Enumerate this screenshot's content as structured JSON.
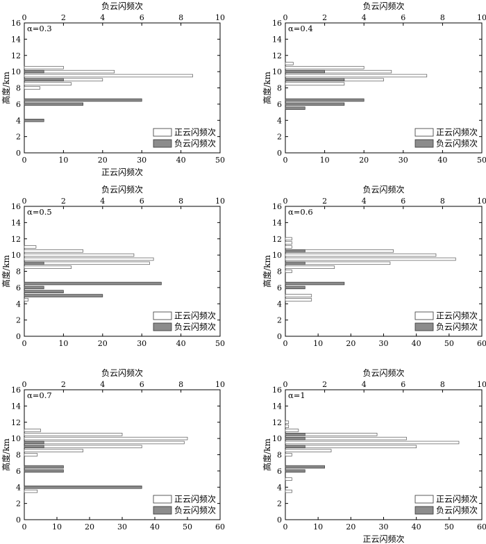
{
  "legend": {
    "positive": "正云闪频次",
    "negative": "负云闪频次",
    "positive_color": "#ffffff",
    "negative_color": "#8c8c8c"
  },
  "chart_data": [
    {
      "type": "bar",
      "orientation": "horizontal",
      "panel_label": "α=0.3",
      "ylabel": "高度/km",
      "xlabel_bottom": "正云闪频次",
      "xlabel_top": "负云闪频次",
      "ylim": [
        0,
        16
      ],
      "yticks": [
        0,
        2,
        4,
        6,
        8,
        10,
        12,
        14,
        16
      ],
      "xlim_bottom": [
        0,
        50
      ],
      "xticks_bottom": [
        0,
        10,
        20,
        30,
        40,
        50
      ],
      "xlim_top": [
        0,
        10
      ],
      "xticks_top": [
        0,
        2,
        4,
        6,
        8,
        10
      ],
      "series": [
        {
          "name": "正云闪频次",
          "axis": "bottom",
          "heights": [
            10.5,
            10.0,
            9.5,
            9.0,
            8.5,
            8.0
          ],
          "values": [
            10,
            23,
            43,
            20,
            12,
            4
          ]
        },
        {
          "name": "负云闪频次",
          "axis": "top",
          "heights": [
            10.0,
            9.0,
            6.5,
            6.0,
            4.0
          ],
          "values": [
            1,
            2,
            6,
            3,
            1
          ]
        }
      ]
    },
    {
      "type": "bar",
      "orientation": "horizontal",
      "panel_label": "α=0.4",
      "ylabel": "高度/km",
      "xlabel_bottom": "",
      "xlabel_top": "负云闪频次",
      "ylim": [
        0,
        16
      ],
      "yticks": [
        0,
        2,
        4,
        6,
        8,
        10,
        12,
        14,
        16
      ],
      "xlim_bottom": [
        0,
        50
      ],
      "xticks_bottom": [
        0,
        10,
        20,
        30,
        40,
        50
      ],
      "xlim_top": [
        0,
        10
      ],
      "xticks_top": [
        0,
        2,
        4,
        6,
        8,
        10
      ],
      "series": [
        {
          "name": "正云闪频次",
          "axis": "bottom",
          "heights": [
            11.0,
            10.5,
            10.0,
            9.5,
            9.0,
            8.5
          ],
          "values": [
            2,
            20,
            27,
            36,
            25,
            15
          ]
        },
        {
          "name": "负云闪频次",
          "axis": "top",
          "heights": [
            10.0,
            9.0,
            6.5,
            6.0,
            5.5
          ],
          "values": [
            2,
            3,
            4,
            3,
            1
          ]
        }
      ]
    },
    {
      "type": "bar",
      "orientation": "horizontal",
      "panel_label": "α=0.5",
      "ylabel": "高度/km",
      "xlabel_bottom": "",
      "xlabel_top": "负云闪频次",
      "ylim": [
        0,
        16
      ],
      "yticks": [
        0,
        2,
        4,
        6,
        8,
        10,
        12,
        14,
        16
      ],
      "xlim_bottom": [
        0,
        50
      ],
      "xticks_bottom": [
        0,
        10,
        20,
        30,
        40,
        50
      ],
      "xlim_top": [
        0,
        10
      ],
      "xticks_top": [
        0,
        2,
        4,
        6,
        8,
        10
      ],
      "series": [
        {
          "name": "正云闪频次",
          "axis": "bottom",
          "heights": [
            11.0,
            10.5,
            10.0,
            9.5,
            9.0,
            8.5,
            4.5
          ],
          "values": [
            3,
            15,
            28,
            33,
            32,
            12,
            1
          ]
        },
        {
          "name": "负云闪频次",
          "axis": "top",
          "heights": [
            9.0,
            6.5,
            6.0,
            5.5,
            5.0
          ],
          "values": [
            1,
            7,
            1,
            2,
            4
          ]
        }
      ]
    },
    {
      "type": "bar",
      "orientation": "horizontal",
      "panel_label": "α=0.6",
      "ylabel": "高度/km",
      "xlabel_bottom": "",
      "xlabel_top": "负云闪频次",
      "ylim": [
        0,
        16
      ],
      "yticks": [
        0,
        2,
        4,
        6,
        8,
        10,
        12,
        14,
        16
      ],
      "xlim_bottom": [
        0,
        60
      ],
      "xticks_bottom": [
        0,
        10,
        20,
        30,
        40,
        50,
        60
      ],
      "xlim_top": [
        0,
        10
      ],
      "xticks_top": [
        0,
        2,
        4,
        6,
        8,
        10
      ],
      "series": [
        {
          "name": "正云闪频次",
          "axis": "bottom",
          "heights": [
            12.0,
            11.5,
            11.0,
            10.5,
            10.0,
            9.5,
            9.0,
            8.5,
            8.0,
            5.0,
            4.5
          ],
          "values": [
            2,
            2,
            2,
            33,
            46,
            52,
            32,
            15,
            2,
            8,
            8
          ]
        },
        {
          "name": "负云闪频次",
          "axis": "top",
          "heights": [
            10.5,
            9.0,
            6.5,
            6.0
          ],
          "values": [
            1,
            1,
            3,
            1
          ]
        }
      ]
    },
    {
      "type": "bar",
      "orientation": "horizontal",
      "panel_label": "α=0.7",
      "ylabel": "高度/km",
      "xlabel_bottom": "",
      "xlabel_top": "负云闪频次",
      "ylim": [
        0,
        16
      ],
      "yticks": [
        0,
        2,
        4,
        6,
        8,
        10,
        12,
        14,
        16
      ],
      "xlim_bottom": [
        0,
        60
      ],
      "xticks_bottom": [
        0,
        10,
        20,
        30,
        40,
        50,
        60
      ],
      "xlim_top": [
        0,
        10
      ],
      "xticks_top": [
        0,
        2,
        4,
        6,
        8,
        10
      ],
      "series": [
        {
          "name": "正云闪频次",
          "axis": "bottom",
          "heights": [
            11.0,
            10.5,
            10.0,
            9.5,
            9.0,
            8.5,
            8.0,
            3.5
          ],
          "values": [
            5,
            30,
            50,
            49,
            36,
            18,
            4,
            4
          ]
        },
        {
          "name": "负云闪频次",
          "axis": "top",
          "heights": [
            9.5,
            9.0,
            6.5,
            6.0,
            4.0
          ],
          "values": [
            1,
            1,
            2,
            2,
            6
          ]
        }
      ]
    },
    {
      "type": "bar",
      "orientation": "horizontal",
      "panel_label": "α=1",
      "ylabel": "高度/km",
      "xlabel_bottom": "正云闪频次",
      "xlabel_top": "负云闪频次",
      "ylim": [
        0,
        16
      ],
      "yticks": [
        0,
        2,
        4,
        6,
        8,
        10,
        12,
        14,
        16
      ],
      "xlim_bottom": [
        0,
        60
      ],
      "xticks_bottom": [
        0,
        10,
        20,
        30,
        40,
        50,
        60
      ],
      "xlim_top": [
        0,
        10
      ],
      "xticks_top": [
        0,
        2,
        4,
        6,
        8,
        10
      ],
      "series": [
        {
          "name": "正云闪频次",
          "axis": "bottom",
          "heights": [
            12.0,
            11.5,
            11.0,
            10.5,
            10.0,
            9.5,
            9.0,
            8.5,
            8.0,
            5.0,
            3.5
          ],
          "values": [
            1,
            1,
            4,
            28,
            37,
            53,
            40,
            14,
            2,
            2,
            2
          ]
        },
        {
          "name": "负云闪频次",
          "axis": "top",
          "heights": [
            10.5,
            10.0,
            9.0,
            6.5,
            6.0
          ],
          "values": [
            1,
            1,
            1,
            2,
            1
          ]
        }
      ]
    }
  ]
}
